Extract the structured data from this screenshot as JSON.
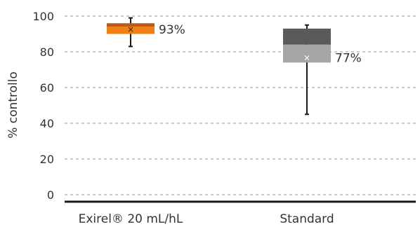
{
  "chart_data": {
    "type": "boxplot",
    "title": "",
    "xlabel": "",
    "ylabel": "% controllo",
    "ylim": [
      0,
      100
    ],
    "yticks": [
      0,
      20,
      40,
      60,
      80,
      100
    ],
    "grid": true,
    "legend": "none",
    "categories": [
      "Exirel® 20 mL/hL",
      "Standard"
    ],
    "boxes": [
      {
        "category": "Exirel® 20 mL/hL",
        "min": 83,
        "q1": 90,
        "median": 94,
        "q3": 96,
        "max": 99,
        "mean": 93,
        "label": "93%",
        "color_upper": "#c05a12",
        "color_lower": "#f08012"
      },
      {
        "category": "Standard",
        "min": 45,
        "q1": 74,
        "median": 84,
        "q3": 93,
        "max": 95,
        "mean": 77,
        "label": "77%",
        "color_upper": "#5a5a5a",
        "color_lower": "#a6a6a6"
      }
    ]
  },
  "colors": {
    "axis": "#1a1a1a",
    "grid": "#9a9a9a",
    "whisker": "#1a1a1a",
    "mean_marker": "#ffffff"
  }
}
